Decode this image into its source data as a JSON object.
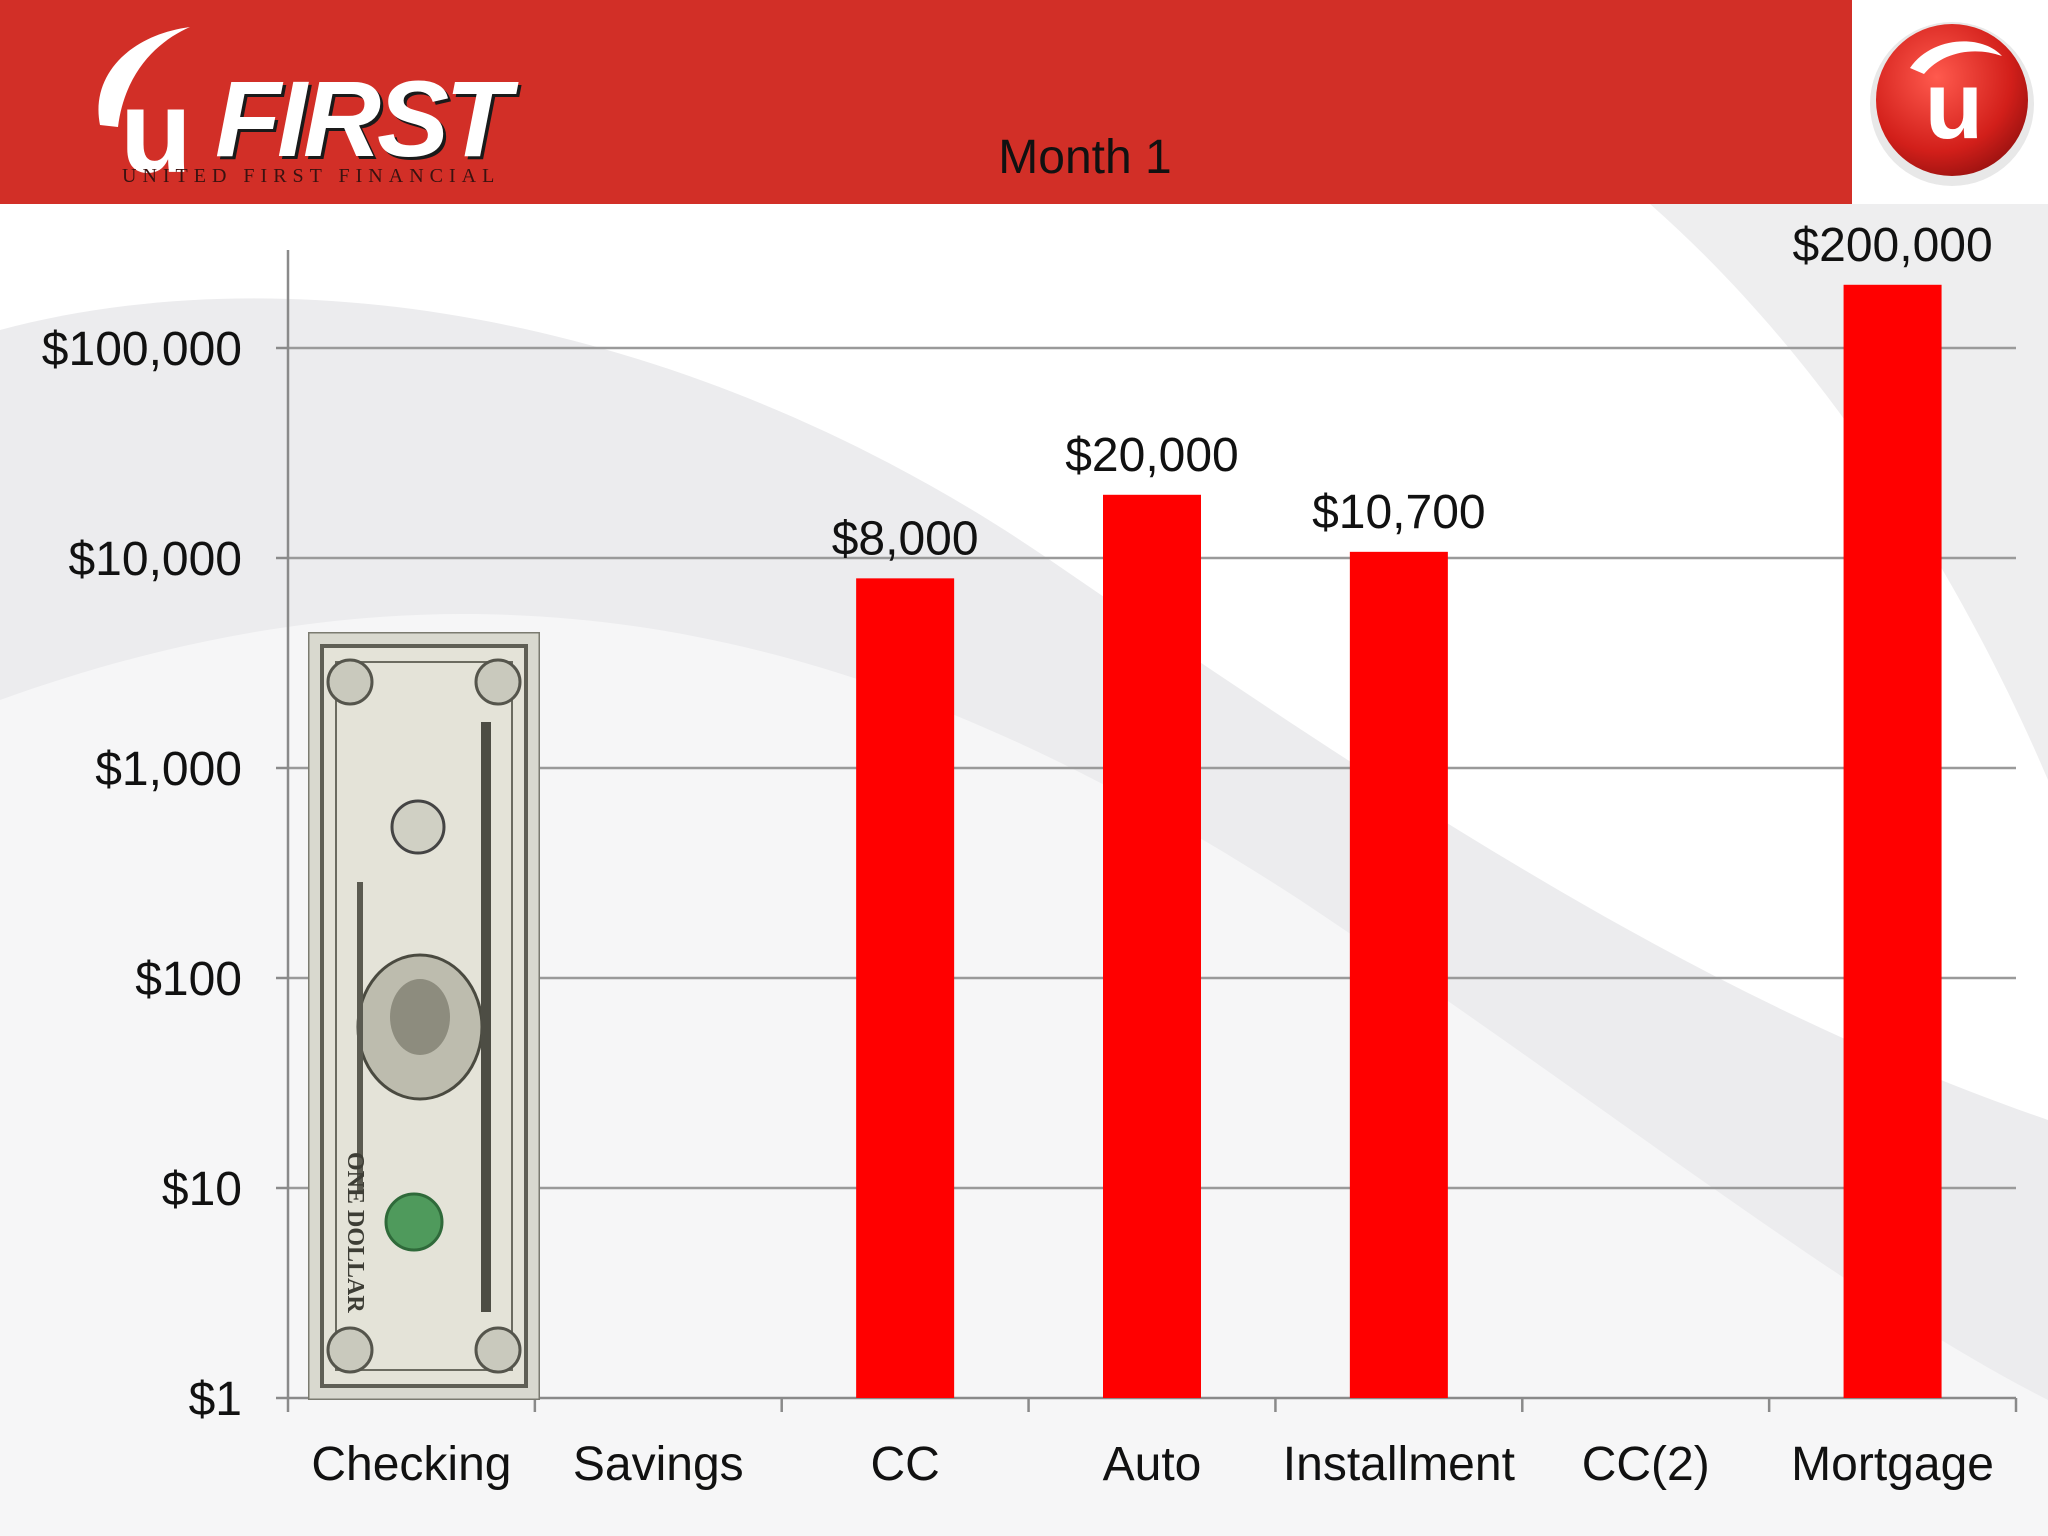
{
  "header": {
    "title": "Month 1",
    "brand_name": "FIRST",
    "brand_mark": "u",
    "brand_tagline": "UNITED FIRST FINANCIAL",
    "band_color": "#d22f27"
  },
  "corner_logo": {
    "mark": "u",
    "icon": "ufirst-badge-icon"
  },
  "decor": {
    "bill_icon": "one-dollar-bill-icon",
    "bill_text": "ONE DOLLAR"
  },
  "chart_data": {
    "type": "bar",
    "title": "Month 1",
    "xlabel": "",
    "ylabel": "",
    "yscale": "log",
    "ylim": [
      1,
      300000
    ],
    "ytick_values": [
      1,
      10,
      100,
      1000,
      10000,
      100000
    ],
    "ytick_labels": [
      "$1",
      "$10",
      "$100",
      "$1,000",
      "$10,000",
      "$100,000"
    ],
    "categories": [
      "Checking",
      "Savings",
      "CC",
      "Auto",
      "Installment",
      "CC(2)",
      "Mortgage"
    ],
    "series": [
      {
        "values": [
          null,
          null,
          8000,
          20000,
          10700,
          null,
          200000
        ],
        "data_labels": [
          "",
          "",
          "$8,000",
          "$20,000",
          "$10,700",
          "",
          "$200,000"
        ],
        "color": "#ff0000"
      }
    ],
    "grid": true,
    "legend": "none"
  }
}
